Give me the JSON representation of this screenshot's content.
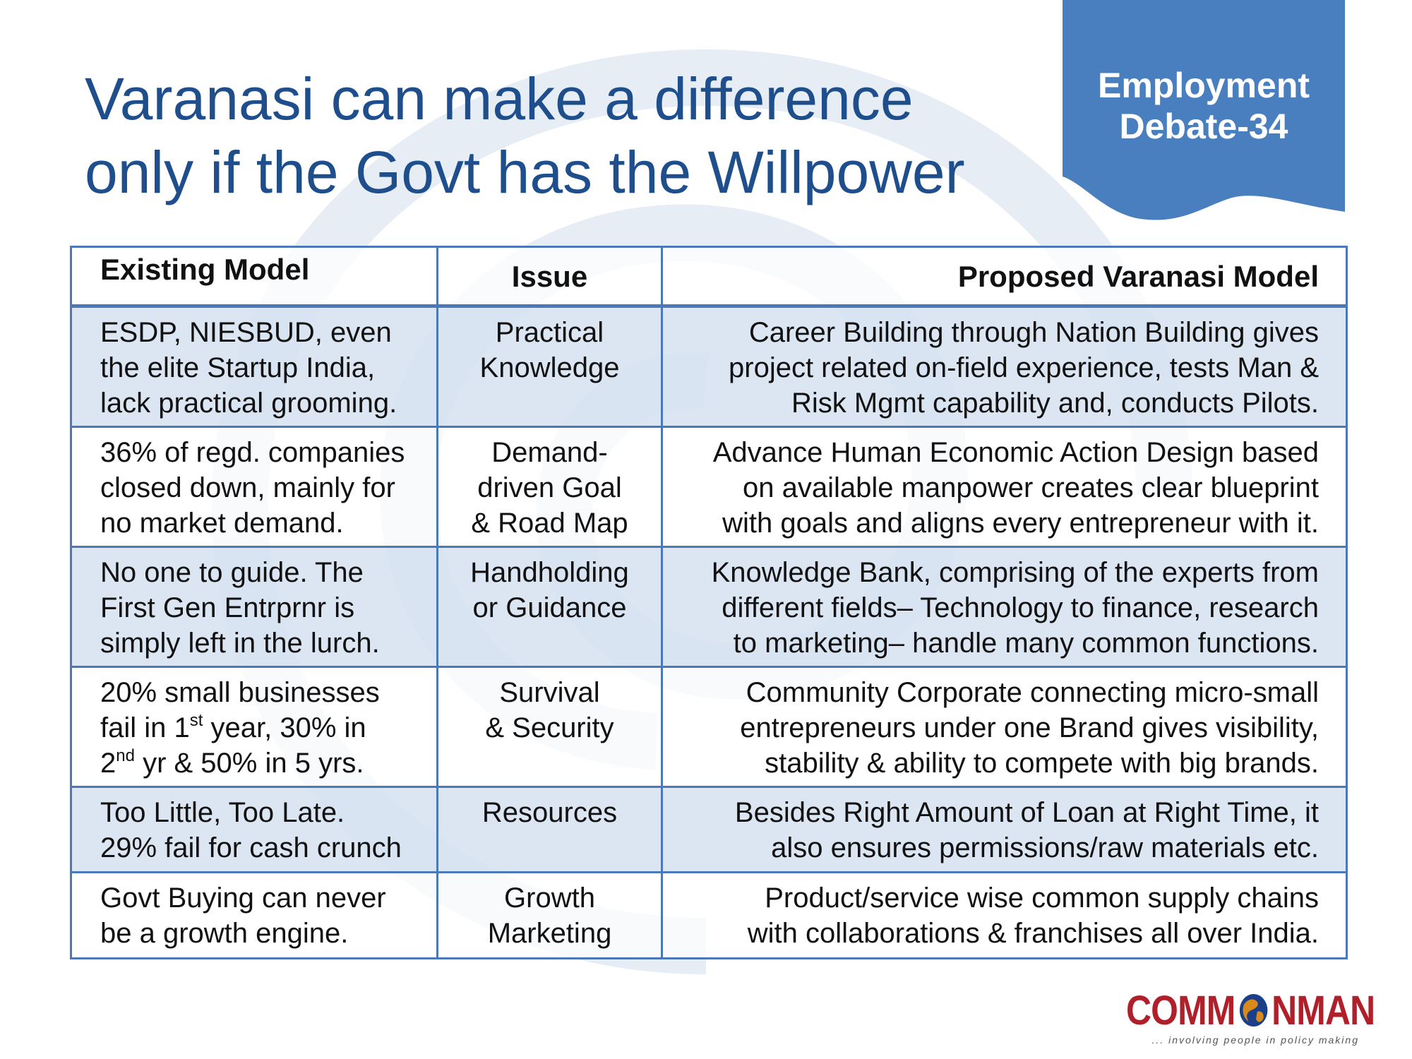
{
  "title": {
    "line1": "Varanasi can make a difference",
    "line2": "only if the Govt has the Willpower"
  },
  "tag": {
    "line1": "Employment",
    "line2": "Debate-34"
  },
  "table": {
    "headers": {
      "existing": "Existing Model",
      "issue": "Issue",
      "proposed": "Proposed Varanasi Model"
    },
    "rows": [
      {
        "existing": [
          "ESDP, NIESBUD, even",
          "the elite Startup India,",
          "lack practical grooming."
        ],
        "issue": [
          "Practical",
          "Knowledge"
        ],
        "proposed": [
          "Career Building through Nation Building gives",
          "project related on-field experience, tests Man &",
          "Risk Mgmt capability and, conducts Pilots."
        ]
      },
      {
        "existing": [
          "36% of regd. companies",
          "closed down, mainly for",
          "no market demand."
        ],
        "issue": [
          "Demand-",
          "driven Goal",
          "& Road Map"
        ],
        "proposed": [
          "Advance Human Economic Action Design based",
          "on available manpower creates clear blueprint",
          "with goals and aligns every entrepreneur with it."
        ]
      },
      {
        "existing": [
          "No one to guide. The",
          "First Gen Entrprnr is",
          "simply left in the lurch."
        ],
        "issue": [
          "Handholding",
          "or Guidance"
        ],
        "proposed": [
          "Knowledge Bank, comprising of the experts from",
          "different fields– Technology to finance, research",
          "to marketing– handle many common functions."
        ]
      },
      {
        "existing_line1": "20% small businesses",
        "existing_line2": {
          "a": "fail in 1",
          "sup": "st",
          "b": " year, 30% in"
        },
        "existing_line3": {
          "a": "2",
          "sup": "nd",
          "b": " yr & 50% in 5 yrs."
        },
        "issue": [
          "Survival",
          "& Security"
        ],
        "proposed": [
          "Community Corporate connecting micro-small",
          "entrepreneurs under one Brand gives visibility,",
          "stability & ability to compete with big brands."
        ]
      },
      {
        "existing": [
          "Too Little, Too Late.",
          "29% fail for cash crunch"
        ],
        "issue": [
          "Resources"
        ],
        "proposed": [
          "Besides Right Amount of Loan at Right Time, it",
          "also ensures permissions/raw materials etc."
        ]
      },
      {
        "existing": [
          "Govt Buying can never",
          "be a growth engine."
        ],
        "issue": [
          "Growth",
          "Marketing"
        ],
        "proposed": [
          "Product/service wise common supply chains",
          "with collaborations & franchises all over India."
        ]
      }
    ]
  },
  "logo": {
    "left": "COMM",
    "right": "NMAN",
    "tagline": "... involving people in policy making",
    "globe_icon": "globe-icon"
  },
  "colors": {
    "title": "#1f4e8c",
    "tag_bg": "#4a7fbf",
    "border": "#4a78b8",
    "row_shade": "#d6e2f1",
    "logo_red": "#b0202a"
  }
}
